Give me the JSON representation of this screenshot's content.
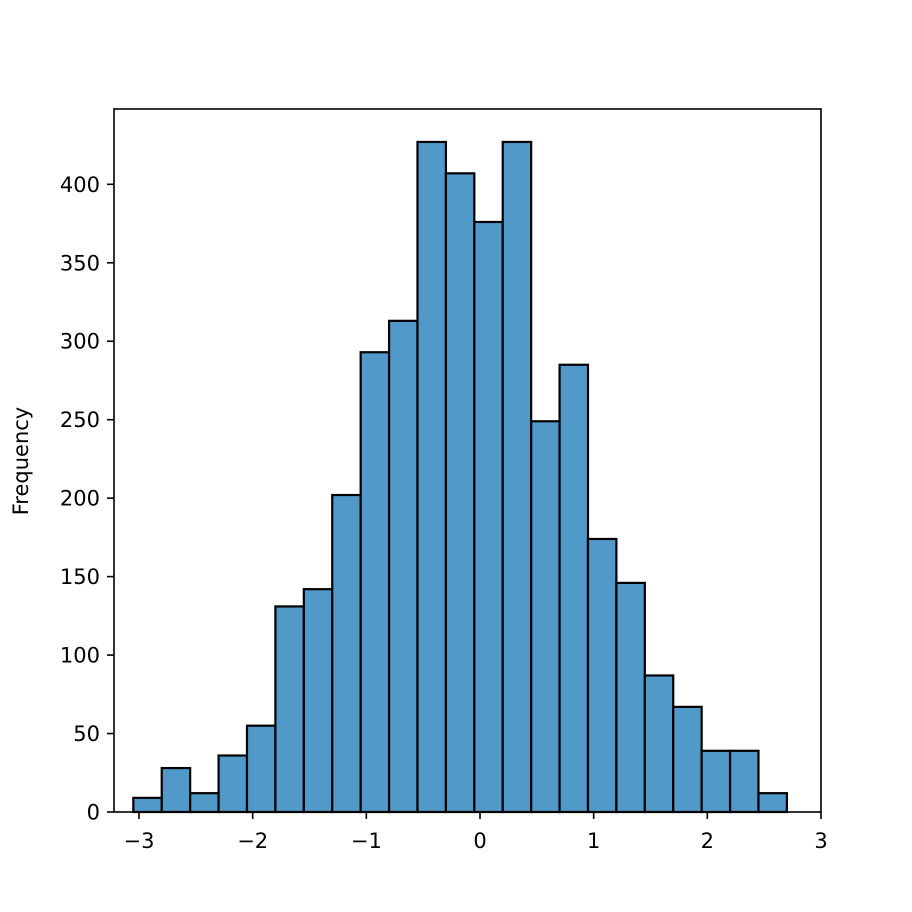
{
  "chart_data": {
    "type": "bar",
    "title": "",
    "xlabel": "",
    "ylabel": "Frequency",
    "xlim": [
      -3.22,
      3.0
    ],
    "ylim": [
      0,
      448
    ],
    "bin_edges": [
      -3.05,
      -2.8,
      -2.55,
      -2.3,
      -2.05,
      -1.8,
      -1.55,
      -1.3,
      -1.05,
      -0.8,
      -0.55,
      -0.3,
      -0.05,
      0.2,
      0.45,
      0.7,
      0.95,
      1.2,
      1.45,
      1.7,
      1.95,
      2.2,
      2.45,
      2.7
    ],
    "values": [
      9,
      28,
      12,
      36,
      55,
      131,
      142,
      202,
      293,
      313,
      427,
      407,
      376,
      427,
      249,
      285,
      174,
      146,
      87,
      67,
      39,
      39,
      12
    ],
    "x_ticks": [
      -3,
      -2,
      -1,
      0,
      1,
      2,
      3
    ],
    "x_tick_labels": [
      "−3",
      "−2",
      "−1",
      "0",
      "1",
      "2",
      "3"
    ],
    "y_ticks": [
      0,
      50,
      100,
      150,
      200,
      250,
      300,
      350,
      400
    ],
    "y_tick_labels": [
      "0",
      "50",
      "100",
      "150",
      "200",
      "250",
      "300",
      "350",
      "400"
    ],
    "grid": false,
    "bar_color": "#5199c9",
    "edge_color": "#000000"
  }
}
